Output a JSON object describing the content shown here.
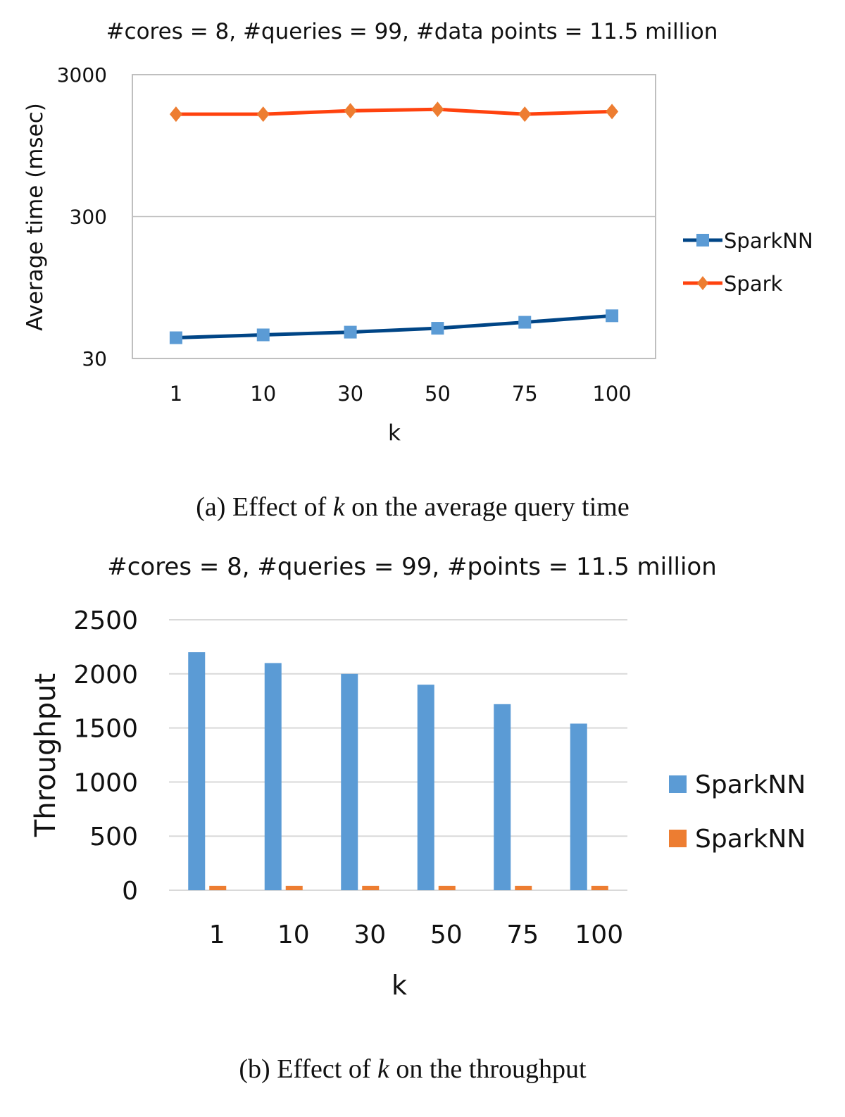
{
  "chart_data": [
    {
      "type": "line",
      "title": "#cores = 8, #queries = 99, #data points = 11.5 million",
      "xlabel": "k",
      "ylabel": "Average time (msec)",
      "categories": [
        "1",
        "10",
        "30",
        "50",
        "75",
        "100"
      ],
      "yscale": "log",
      "ylim": [
        30,
        3000
      ],
      "yticks": [
        "30",
        "300",
        "3000"
      ],
      "grid": true,
      "legend": "right",
      "series": [
        {
          "name": "SparkNN",
          "values": [
            42,
            44,
            46,
            49,
            54,
            60
          ],
          "color": "#004586",
          "marker": "square",
          "marker_color": "#5b9bd5"
        },
        {
          "name": "Spark",
          "values": [
            1580,
            1580,
            1670,
            1710,
            1580,
            1650
          ],
          "color": "#ff420e",
          "marker": "diamond",
          "marker_color": "#ed7d31"
        }
      ],
      "caption": "(a) Effect of k on the average query time"
    },
    {
      "type": "bar",
      "title": "#cores = 8, #queries = 99, #points = 11.5 million",
      "xlabel": "k",
      "ylabel": "Throughput",
      "categories": [
        "1",
        "10",
        "30",
        "50",
        "75",
        "100"
      ],
      "ylim": [
        0,
        2500
      ],
      "yticks": [
        "0",
        "500",
        "1000",
        "1500",
        "2000",
        "2500"
      ],
      "grid": true,
      "legend": "right",
      "series": [
        {
          "name": "SparkNN",
          "values": [
            2200,
            2100,
            2000,
            1900,
            1720,
            1540
          ],
          "color": "#5b9bd5"
        },
        {
          "name": "SparkNN",
          "values": [
            40,
            40,
            40,
            40,
            40,
            40
          ],
          "color": "#ed7d31"
        }
      ],
      "caption": "(b) Effect of k on the throughput"
    }
  ]
}
